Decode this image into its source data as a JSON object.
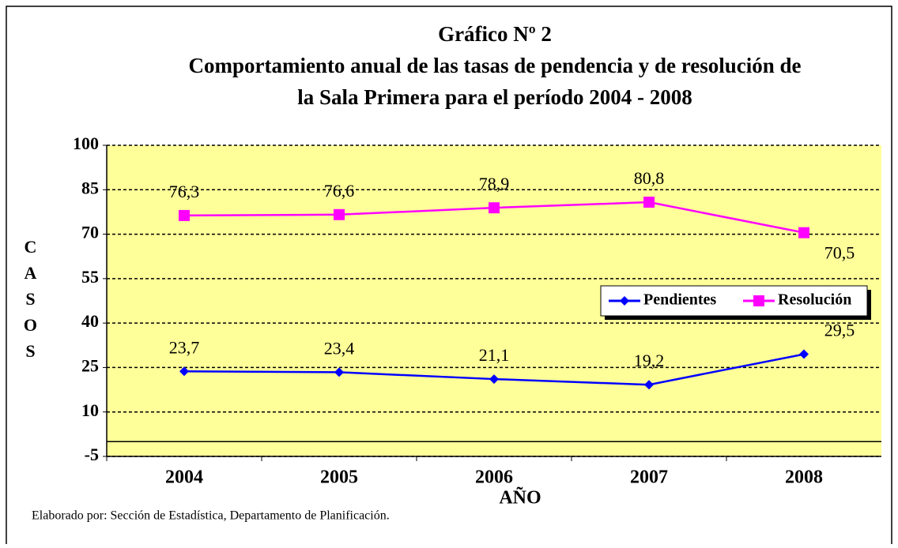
{
  "chart_data": {
    "type": "line",
    "title": [
      "Gráfico Nº 2",
      "Comportamiento anual de las tasas de pendencia y de resolución de",
      "la Sala Primera para el período 2004 - 2008"
    ],
    "ylabel": "CASOS",
    "xlabel": "AÑO",
    "note": "Elaborado por: Sección de Estadística, Departamento de Planificación.",
    "categories": [
      "2004",
      "2005",
      "2006",
      "2007",
      "2008"
    ],
    "series": [
      {
        "name": "Pendientes",
        "color": "#0000ff",
        "marker": "diamond",
        "values": [
          23.7,
          23.4,
          21.1,
          19.2,
          29.5
        ],
        "value_labels": [
          "23,7",
          "23,4",
          "21,1",
          "19,2",
          "29,5"
        ]
      },
      {
        "name": "Resolución",
        "color": "#ff00ff",
        "marker": "square",
        "values": [
          76.3,
          76.6,
          78.9,
          80.8,
          70.5
        ],
        "value_labels": [
          "76,3",
          "76,6",
          "78,9",
          "80,8",
          "70,5"
        ]
      }
    ],
    "ylim": [
      -5,
      100
    ],
    "yticks": [
      -5,
      10,
      25,
      40,
      55,
      70,
      85,
      100
    ],
    "grid": true,
    "plot_background": "#ffff99"
  }
}
